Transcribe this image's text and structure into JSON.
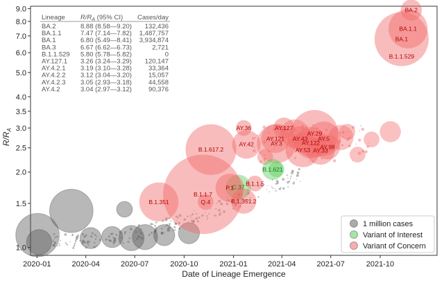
{
  "chart_data": {
    "type": "scatter",
    "xlabel": "Date of Lineage Emergence",
    "ylabel_main": "R/R",
    "ylabel_sub": "A",
    "y_scale": "log",
    "ylim": [
      0.93,
      9.2
    ],
    "xlim": [
      "2019-12-20",
      "2022-01-15"
    ],
    "x_ticks": [
      "2020-01",
      "2020-04",
      "2020-07",
      "2020-10",
      "2021-01",
      "2021-04",
      "2021-07",
      "2021-10"
    ],
    "y_ticks": [
      "1.0",
      "1.5",
      "2.0",
      "2.5",
      "3.0",
      "3.5",
      "4.0",
      "5.0",
      "6.0",
      "7.0",
      "8.0",
      "9.0"
    ],
    "y_tick_values": [
      1.0,
      1.5,
      2.0,
      2.5,
      3.0,
      3.5,
      4.0,
      5.0,
      6.0,
      7.0,
      8.0,
      9.0
    ],
    "table": {
      "headers": [
        "Lineage",
        "R/R",
        "A",
        "(95% CI)",
        "Cases/day"
      ],
      "rows": [
        {
          "lineage": "BA.2",
          "rr": "8.88 (8.58—9.20)",
          "cases": "132,436"
        },
        {
          "lineage": "BA.1.1",
          "rr": "7.47 (7.14—7.82)",
          "cases": "1,487,757"
        },
        {
          "lineage": "BA.1",
          "rr": "6.80 (5.49—8.41)",
          "cases": "3,934,874"
        },
        {
          "lineage": "BA.3",
          "rr": "6.67 (6.62—6.73)",
          "cases": "2,721"
        },
        {
          "lineage": "B.1.1.529",
          "rr": "5.80 (5.78—5.82)",
          "cases": "0"
        },
        {
          "lineage": "AY.127.1",
          "rr": "3.26 (3.24—3.29)",
          "cases": "120,147"
        },
        {
          "lineage": "AY.4.2.1",
          "rr": "3.19 (3.10—3.28)",
          "cases": "33,364"
        },
        {
          "lineage": "AY.4.2.2",
          "rr": "3.12 (3.04—3.20)",
          "cases": "15,057"
        },
        {
          "lineage": "AY.4.2.3",
          "rr": "3.05 (2.93—3.18)",
          "cases": "44,558"
        },
        {
          "lineage": "AY.4.2",
          "rr": "3.04 (2.97—3.12)",
          "cases": "90,376"
        }
      ]
    },
    "legend": {
      "placement": "bottom-right",
      "items": [
        {
          "label": "1 million cases",
          "color": "#666666"
        },
        {
          "label": "Variant of Interest",
          "color": "#5ccf5c"
        },
        {
          "label": "Variant of Concern",
          "color": "#f26b6b"
        }
      ]
    },
    "colors": {
      "other": "#555555",
      "voi": "#5ccf5c",
      "voc": "#f26b6b",
      "voc_text": "#b30000",
      "voi_text": "#1a7a1a"
    },
    "labeled_points": [
      {
        "label": "BA.2",
        "date": "2021-11-28",
        "rr": 8.88,
        "size": 2,
        "kind": "voc",
        "label_pos": "center"
      },
      {
        "label": "BA.1.1",
        "date": "2021-11-22",
        "rr": 7.47,
        "size": 8,
        "kind": "voc",
        "label_pos": "center"
      },
      {
        "label": "BA.1",
        "date": "2021-11-10",
        "rr": 6.8,
        "size": 16,
        "kind": "voc",
        "label_pos": "center"
      },
      {
        "label": "B.1.1.529",
        "date": "2021-11-10",
        "rr": 5.8,
        "size": 0,
        "kind": "voc",
        "label_pos": "center"
      },
      {
        "label": "AY.36",
        "date": "2021-01-20",
        "rr": 3.0,
        "size": 1,
        "kind": "voc",
        "label_pos": "center"
      },
      {
        "label": "AY.127",
        "date": "2021-04-05",
        "rr": 3.0,
        "size": 2,
        "kind": "voc",
        "label_pos": "center"
      },
      {
        "label": "AY.29",
        "date": "2021-06-01",
        "rr": 2.85,
        "size": 12,
        "kind": "voc",
        "label_pos": "center"
      },
      {
        "label": "AY.121",
        "date": "2021-03-20",
        "rr": 2.72,
        "size": 4,
        "kind": "voc",
        "label_pos": "center"
      },
      {
        "label": "AY.3",
        "date": "2021-03-22",
        "rr": 2.6,
        "size": 8,
        "kind": "voc",
        "label_pos": "center"
      },
      {
        "label": "AY.42",
        "date": "2021-01-25",
        "rr": 2.58,
        "size": 4,
        "kind": "voc",
        "label_pos": "center"
      },
      {
        "label": "B.1.617.2",
        "date": "2020-11-20",
        "rr": 2.46,
        "size": 14,
        "kind": "voc",
        "label_pos": "center"
      },
      {
        "label": "AY.5",
        "date": "2021-06-18",
        "rr": 2.72,
        "size": 6,
        "kind": "voc",
        "label_pos": "center"
      },
      {
        "label": "AY.43",
        "date": "2021-05-05",
        "rr": 2.72,
        "size": 3,
        "kind": "voc",
        "label_pos": "center"
      },
      {
        "label": "AY.122",
        "date": "2021-05-25",
        "rr": 2.62,
        "size": 5,
        "kind": "voc",
        "label_pos": "center"
      },
      {
        "label": "AY.98",
        "date": "2021-06-25",
        "rr": 2.52,
        "size": 3,
        "kind": "voc",
        "label_pos": "center"
      },
      {
        "label": "AY.53",
        "date": "2021-05-10",
        "rr": 2.45,
        "size": 6,
        "kind": "voc",
        "label_pos": "center"
      },
      {
        "label": "AY.33",
        "date": "2021-06-12",
        "rr": 2.44,
        "size": 4,
        "kind": "voc",
        "label_pos": "center"
      },
      {
        "label": "B.1.621",
        "date": "2021-03-15",
        "rr": 2.05,
        "size": 2,
        "kind": "voi",
        "label_pos": "center"
      },
      {
        "label": "C.37",
        "date": "2021-01-10",
        "rr": 1.74,
        "size": 3,
        "kind": "voi",
        "label_pos": "center"
      },
      {
        "label": "P.1",
        "date": "2020-12-25",
        "rr": 1.73,
        "size": 4,
        "kind": "voc",
        "label_pos": "center"
      },
      {
        "label": "B.1.1.7",
        "date": "2020-11-05",
        "rr": 1.63,
        "size": 36,
        "kind": "voc",
        "label_pos": "center"
      },
      {
        "label": "Q.4",
        "date": "2020-11-10",
        "rr": 1.52,
        "size": 1,
        "kind": "voc",
        "label_pos": "center"
      },
      {
        "label": "B.1.351.2",
        "date": "2021-01-20",
        "rr": 1.53,
        "size": 3,
        "kind": "voc",
        "label_pos": "center"
      },
      {
        "label": "B.1.351",
        "date": "2020-08-15",
        "rr": 1.52,
        "size": 8,
        "kind": "voc",
        "label_pos": "center"
      },
      {
        "label": "B.1.1.5",
        "date": "2021-02-10",
        "rr": 1.8,
        "size": 1,
        "kind": "voc",
        "label_pos": "center"
      }
    ],
    "unlabeled_points": [
      {
        "date": "2020-01-02",
        "rr": 1.12,
        "size": 10,
        "kind": "other"
      },
      {
        "date": "2020-01-05",
        "rr": 1.05,
        "size": 3,
        "kind": "other"
      },
      {
        "date": "2020-03-05",
        "rr": 1.4,
        "size": 10,
        "kind": "other"
      },
      {
        "date": "2020-06-12",
        "rr": 1.42,
        "size": 1,
        "kind": "other"
      },
      {
        "date": "2020-06-25",
        "rr": 1.09,
        "size": 3,
        "kind": "other"
      },
      {
        "date": "2020-05-20",
        "rr": 1.1,
        "size": 2,
        "kind": "other"
      },
      {
        "date": "2020-04-10",
        "rr": 1.09,
        "size": 2,
        "kind": "other"
      },
      {
        "date": "2020-07-20",
        "rr": 1.1,
        "size": 3,
        "kind": "other"
      },
      {
        "date": "2020-08-25",
        "rr": 1.12,
        "size": 2,
        "kind": "other"
      },
      {
        "date": "2020-10-10",
        "rr": 1.14,
        "size": 2,
        "kind": "other"
      },
      {
        "date": "2021-03-01",
        "rr": 2.3,
        "size": 1,
        "kind": "voc"
      },
      {
        "date": "2021-03-22",
        "rr": 2.05,
        "size": 1,
        "kind": "voi"
      },
      {
        "date": "2021-08-20",
        "rr": 2.35,
        "size": 1,
        "kind": "voc"
      },
      {
        "date": "2021-09-15",
        "rr": 2.7,
        "size": 1,
        "kind": "voc"
      },
      {
        "date": "2021-10-20",
        "rr": 2.9,
        "size": 2,
        "kind": "voc"
      },
      {
        "date": "2021-08-01",
        "rr": 2.9,
        "size": 1,
        "kind": "voc"
      },
      {
        "date": "2021-07-20",
        "rr": 2.75,
        "size": 3,
        "kind": "voc"
      },
      {
        "date": "2021-04-25",
        "rr": 2.85,
        "size": 4,
        "kind": "voc"
      }
    ]
  }
}
